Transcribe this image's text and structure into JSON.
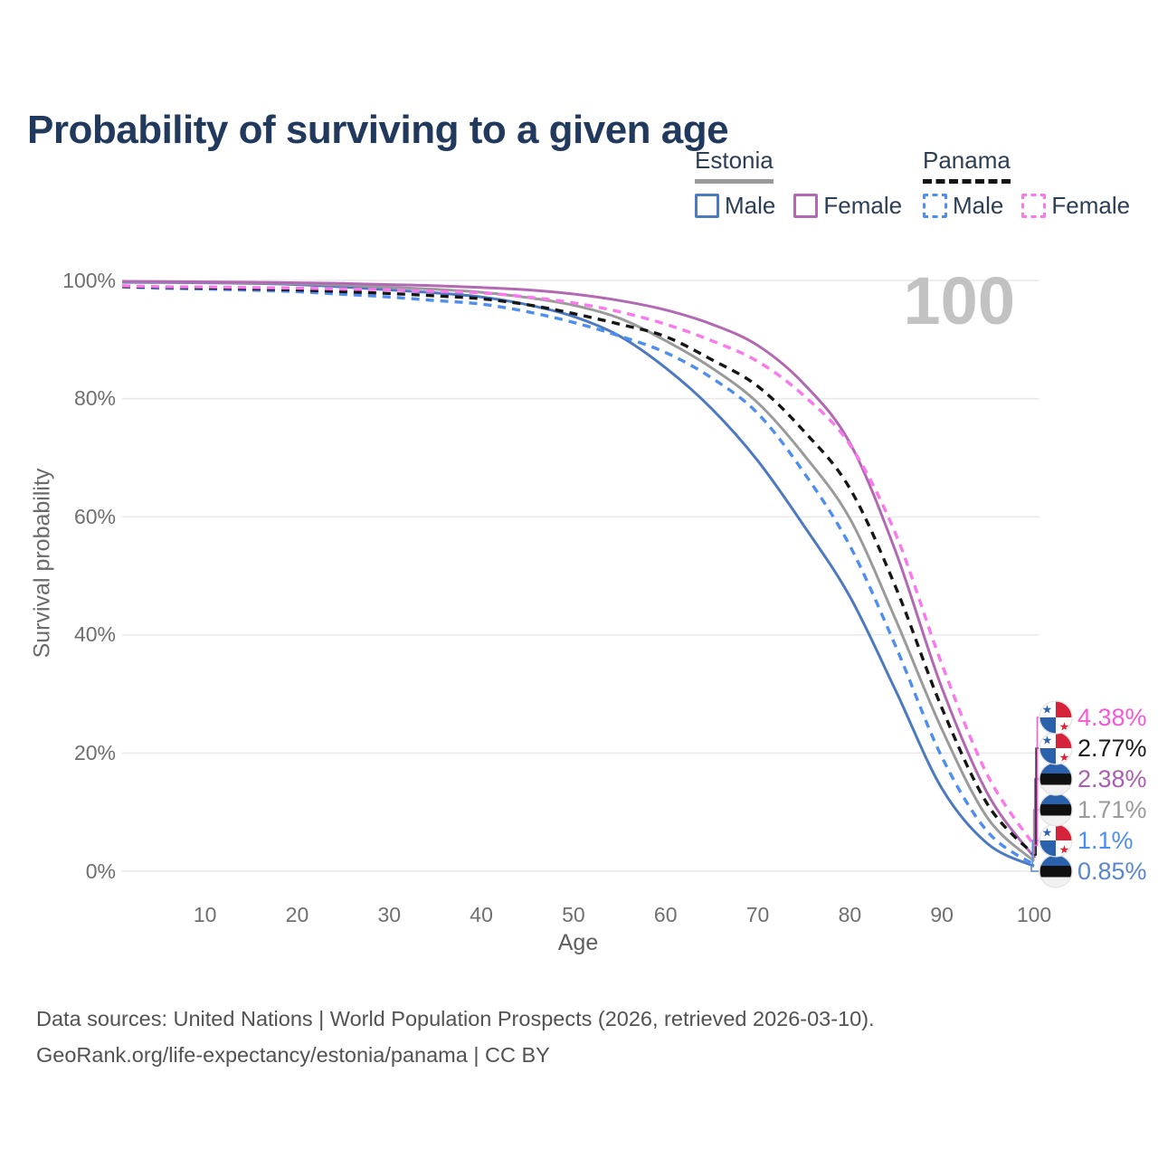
{
  "title": "Probability of surviving to a given age",
  "watermark": "100",
  "legend": {
    "estonia": {
      "label": "Estonia",
      "male_label": "Male",
      "female_label": "Female"
    },
    "panama": {
      "label": "Panama",
      "male_label": "Male",
      "female_label": "Female"
    }
  },
  "footer": {
    "line1": "Data sources: United Nations | World Population Prospects (2026, retrieved 2026-03-10).",
    "line2": "GeoRank.org/life-expectancy/estonia/panama | CC BY"
  },
  "chart_data": {
    "type": "line",
    "title": "Probability of surviving to a given age",
    "xlabel": "Age",
    "ylabel": "Survival probability",
    "xlim": [
      1,
      100
    ],
    "ylim": [
      0,
      100
    ],
    "grid": true,
    "legend_position": "top-right",
    "x_ticks": [
      10,
      20,
      30,
      40,
      50,
      60,
      70,
      80,
      90,
      100
    ],
    "y_tick_values": [
      0,
      20,
      40,
      60,
      80,
      100
    ],
    "y_tick_labels": [
      "0%",
      "20%",
      "40%",
      "60%",
      "80%",
      "100%"
    ],
    "ages": [
      1,
      5,
      10,
      15,
      20,
      25,
      30,
      35,
      40,
      45,
      50,
      55,
      60,
      65,
      70,
      75,
      80,
      85,
      90,
      95,
      100
    ],
    "series": [
      {
        "id": "estonia-male",
        "name": "Estonia Male",
        "country": "Estonia",
        "sex": "Male",
        "style": "solid",
        "dashed": false,
        "color": "#4c79c0",
        "label_color": "#5b86c8",
        "flag": "estonia",
        "end_value": 0.85,
        "end_label": "0.85%",
        "values": [
          99.7,
          99.65,
          99.6,
          99.5,
          99.3,
          98.9,
          98.4,
          97.9,
          97.2,
          95.9,
          93.9,
          90.6,
          85.2,
          78.3,
          69.5,
          58.5,
          46.5,
          30.5,
          14.0,
          4.6,
          0.85
        ]
      },
      {
        "id": "estonia-total",
        "name": "Estonia Total",
        "country": "Estonia",
        "sex": "Both",
        "style": "solid",
        "dashed": false,
        "color": "#9a9a9a",
        "label_color": "#9a9a9a",
        "flag": "estonia",
        "end_value": 1.71,
        "end_label": "1.71%",
        "values": [
          99.8,
          99.72,
          99.68,
          99.6,
          99.45,
          99.2,
          98.85,
          98.5,
          98.0,
          97.1,
          95.8,
          93.6,
          89.8,
          85.2,
          79.3,
          70.5,
          59.7,
          42.5,
          24.0,
          8.9,
          1.71
        ]
      },
      {
        "id": "estonia-female",
        "name": "Estonia Female",
        "country": "Estonia",
        "sex": "Female",
        "style": "solid",
        "dashed": false,
        "color": "#b268b2",
        "label_color": "#a95faf",
        "flag": "estonia",
        "end_value": 2.38,
        "end_label": "2.38%",
        "values": [
          99.85,
          99.8,
          99.75,
          99.7,
          99.6,
          99.5,
          99.3,
          99.1,
          98.8,
          98.4,
          97.7,
          96.6,
          95.0,
          92.6,
          89.0,
          82.5,
          72.5,
          54.0,
          31.0,
          13.0,
          2.38
        ]
      },
      {
        "id": "panama-male",
        "name": "Panama Male",
        "country": "Panama",
        "sex": "Male",
        "style": "dashed",
        "dashed": true,
        "color": "#4d8ef0",
        "label_color": "#4d8ef0",
        "flag": "panama",
        "end_value": 1.1,
        "end_label": "1.1%",
        "values": [
          98.9,
          98.7,
          98.55,
          98.35,
          98.1,
          97.65,
          97.2,
          96.6,
          96.0,
          94.7,
          92.9,
          90.6,
          87.8,
          83.5,
          77.5,
          67.5,
          55.1,
          38.0,
          19.3,
          6.6,
          1.1
        ]
      },
      {
        "id": "panama-total",
        "name": "Panama Total",
        "country": "Panama",
        "sex": "Both",
        "style": "dashed",
        "dashed": true,
        "color": "#161616",
        "label_color": "#1c1c1c",
        "flag": "panama",
        "end_value": 2.77,
        "end_label": "2.77%",
        "values": [
          99.0,
          98.85,
          98.75,
          98.6,
          98.4,
          98.1,
          97.8,
          97.4,
          96.9,
          95.9,
          94.4,
          92.6,
          90.5,
          86.6,
          82.1,
          74.5,
          64.8,
          48.0,
          27.6,
          11.2,
          2.77
        ]
      },
      {
        "id": "panama-female",
        "name": "Panama Female",
        "country": "Panama",
        "sex": "Female",
        "style": "dashed",
        "dashed": true,
        "color": "#fa78ec",
        "label_color": "#f659d3",
        "flag": "panama",
        "end_value": 4.38,
        "end_label": "4.38%",
        "values": [
          99.1,
          98.95,
          98.9,
          98.8,
          98.7,
          98.55,
          98.4,
          98.15,
          97.9,
          97.2,
          96.2,
          94.7,
          92.6,
          89.8,
          86.3,
          80.5,
          72.2,
          57.0,
          35.0,
          16.1,
          4.38
        ]
      }
    ]
  }
}
